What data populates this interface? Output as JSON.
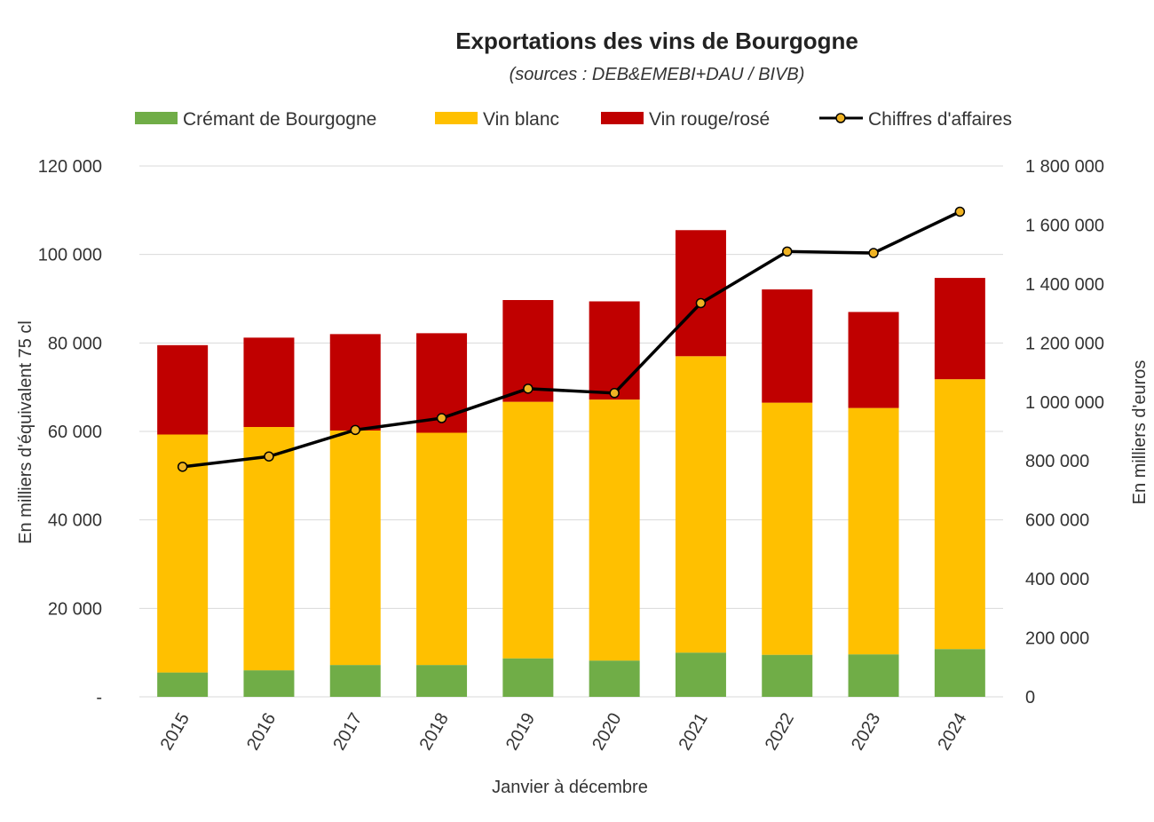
{
  "chart_data": {
    "type": "bar",
    "stacked": true,
    "title": "Exportations des vins de Bourgogne",
    "subtitle": "(sources : DEB&EMEBI+DAU / BIVB)",
    "xlabel": "Janvier à décembre",
    "ylabel": "En milliers d'équivalent 75 cl",
    "y2label": "En milliers d'euros",
    "categories": [
      "2015",
      "2016",
      "2017",
      "2018",
      "2019",
      "2020",
      "2021",
      "2022",
      "2023",
      "2024"
    ],
    "ylim": [
      0,
      120000
    ],
    "y2lim": [
      0,
      1800000
    ],
    "yticks": [
      "-",
      "20 000",
      "40 000",
      "60 000",
      "80 000",
      "100 000",
      "120 000"
    ],
    "y2ticks": [
      "0",
      "200 000",
      "400 000",
      "600 000",
      "800 000",
      "1 000 000",
      "1 200 000",
      "1 400 000",
      "1 600 000",
      "1 800 000"
    ],
    "grid": true,
    "legend_position": "top",
    "series": [
      {
        "name": "Crémant de Bourgogne",
        "kind": "bar",
        "color": "#70ad47",
        "values": [
          5500,
          6000,
          7200,
          7200,
          8700,
          8200,
          10000,
          9500,
          9600,
          10800
        ]
      },
      {
        "name": "Vin blanc",
        "kind": "bar",
        "color": "#ffc000",
        "values": [
          53800,
          55000,
          53000,
          52500,
          58000,
          59000,
          67000,
          57000,
          55700,
          61000
        ]
      },
      {
        "name": "Vin rouge/rosé",
        "kind": "bar",
        "color": "#c00000",
        "values": [
          20200,
          20200,
          21800,
          22500,
          23000,
          22200,
          28500,
          25600,
          21700,
          22900
        ]
      },
      {
        "name": "Chiffres d'affaires",
        "kind": "line",
        "axis": "right",
        "color": "#000000",
        "marker_color": "#f0b323",
        "values": [
          780000,
          815000,
          905000,
          945000,
          1045000,
          1030000,
          1335000,
          1510000,
          1505000,
          1645000
        ]
      }
    ]
  }
}
